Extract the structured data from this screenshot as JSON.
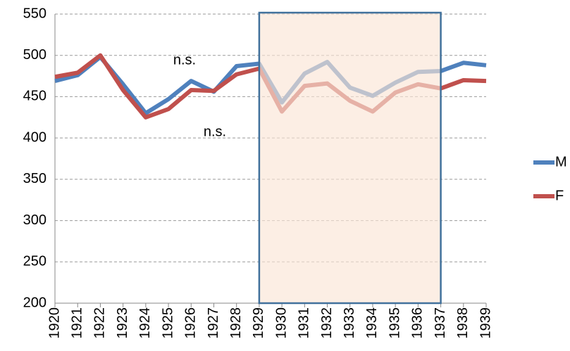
{
  "chart_data": {
    "type": "line",
    "categories": [
      "1920",
      "1921",
      "1922",
      "1923",
      "1924",
      "1925",
      "1926",
      "1927",
      "1928",
      "1929",
      "1930",
      "1931",
      "1932",
      "1933",
      "1934",
      "1935",
      "1936",
      "1937",
      "1938",
      "1939"
    ],
    "series": [
      {
        "name": "M",
        "color": "#4f81bd",
        "values": [
          469,
          476,
          498,
          465,
          430,
          447,
          469,
          456,
          487,
          490,
          443,
          478,
          492,
          461,
          451,
          467,
          480,
          481,
          491,
          488
        ]
      },
      {
        "name": "F",
        "color": "#c0504d",
        "values": [
          474,
          479,
          500,
          458,
          425,
          435,
          458,
          457,
          477,
          484,
          432,
          463,
          466,
          445,
          432,
          455,
          465,
          460,
          470,
          469
        ]
      }
    ],
    "ylim": [
      200,
      550
    ],
    "yticks": [
      200,
      250,
      300,
      350,
      400,
      450,
      500,
      550
    ],
    "grid": true,
    "highlight": {
      "from": "1929",
      "to": "1937",
      "fill": "#fbe5d6",
      "stroke": "#41719c"
    },
    "annotations": [
      "n.s.",
      "n.s."
    ],
    "legend": "right"
  }
}
